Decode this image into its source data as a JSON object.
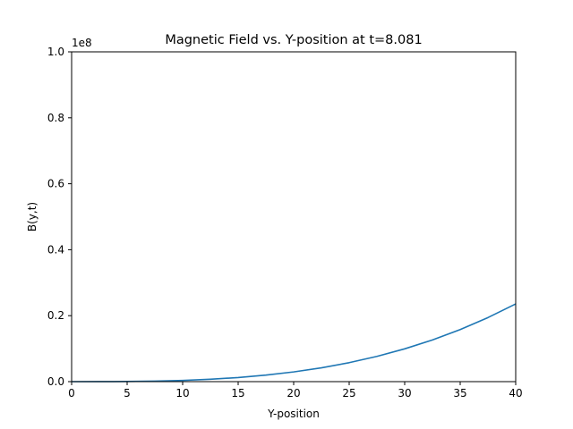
{
  "chart_data": {
    "type": "line",
    "title": "Magnetic Field vs. Y-position at t=8.081",
    "xlabel": "Y-position",
    "ylabel": "B(y,t)",
    "y_offset_label": "1e8",
    "xlim": [
      0,
      40
    ],
    "ylim": [
      0,
      1.0
    ],
    "y_scale_factor": 100000000,
    "x_ticks": [
      0,
      5,
      10,
      15,
      20,
      25,
      30,
      35,
      40
    ],
    "x_tick_labels": [
      "0",
      "5",
      "10",
      "15",
      "20",
      "25",
      "30",
      "35",
      "40"
    ],
    "y_ticks": [
      0.0,
      0.2,
      0.4,
      0.6,
      0.8,
      1.0
    ],
    "y_tick_labels": [
      "0.0",
      "0.2",
      "0.4",
      "0.6",
      "0.8",
      "1.0"
    ],
    "grid": false,
    "legend": "none",
    "series": [
      {
        "color": "#1f77b4",
        "x": [
          0,
          2.5,
          5,
          7.5,
          10,
          12.5,
          15,
          17.5,
          20,
          22.5,
          25,
          27.5,
          30,
          32.5,
          35,
          37.5,
          40
        ],
        "y": [
          0.0,
          7e-05,
          0.0005,
          0.0016,
          0.0037,
          0.0072,
          0.0124,
          0.0197,
          0.0295,
          0.0419,
          0.0575,
          0.0766,
          0.0994,
          0.1264,
          0.1579,
          0.1942,
          0.2357
        ]
      }
    ]
  }
}
